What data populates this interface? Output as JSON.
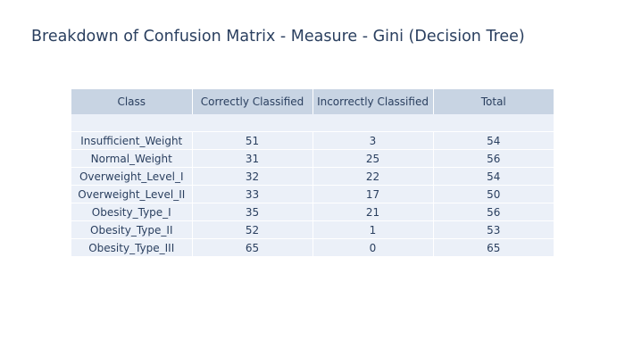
{
  "chart_data": {
    "type": "table",
    "title": "Breakdown of Confusion Matrix - Measure - Gini (Decision Tree)",
    "columns": [
      "Class",
      "Correctly Classified",
      "Incorrectly Classified",
      "Total"
    ],
    "rows": [
      [
        "Insufficient_Weight",
        "51",
        "3",
        "54"
      ],
      [
        "Normal_Weight",
        "31",
        "25",
        "56"
      ],
      [
        "Overweight_Level_I",
        "32",
        "22",
        "54"
      ],
      [
        "Overweight_Level_II",
        "33",
        "17",
        "50"
      ],
      [
        "Obesity_Type_I",
        "35",
        "21",
        "56"
      ],
      [
        "Obesity_Type_II",
        "52",
        "1",
        "53"
      ],
      [
        "Obesity_Type_III",
        "65",
        "0",
        "65"
      ]
    ],
    "colors": {
      "header_fill": "#c8d4e3",
      "cell_fill": "#ebf0f8",
      "text": "#2a3f5f"
    }
  }
}
